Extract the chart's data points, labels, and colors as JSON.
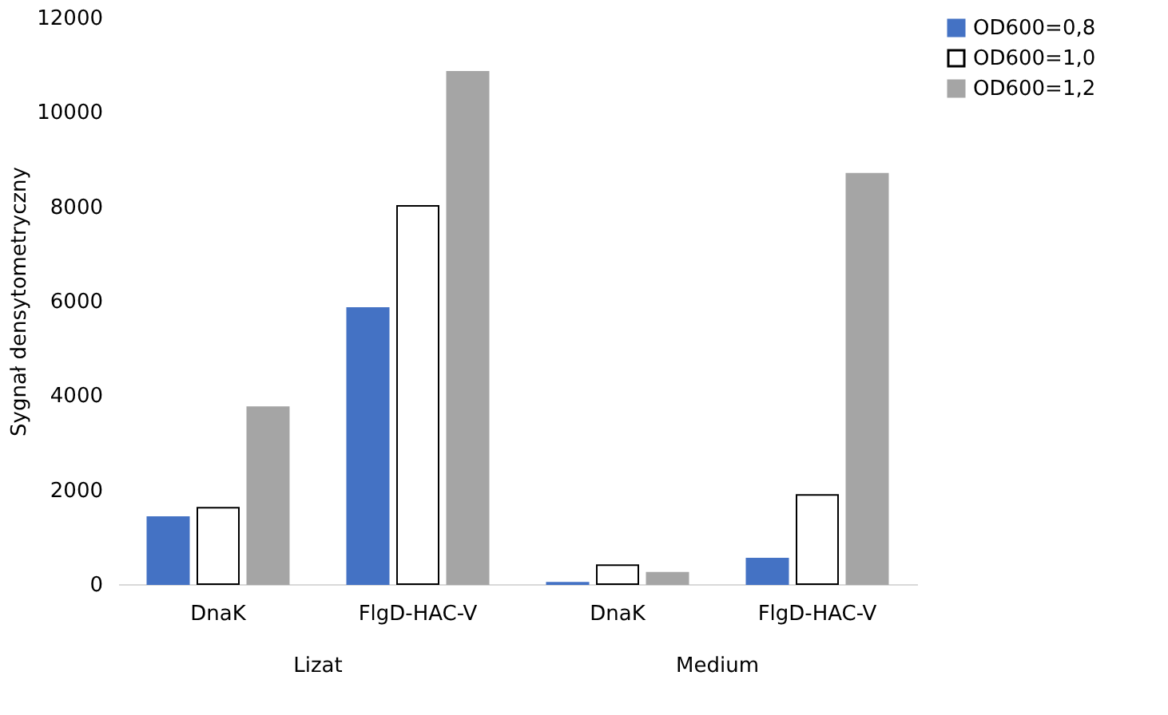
{
  "chart_data": {
    "type": "bar",
    "ylabel": "Sygnał densytometryczny",
    "categories": [
      "DnaK",
      "FlgD-HAC-V",
      "DnaK",
      "FlgD-HAC-V"
    ],
    "series": [
      {
        "name": "OD600=0,8",
        "color": "#4472c4",
        "values": [
          1420,
          5850,
          30,
          540
        ]
      },
      {
        "name": "OD600=1,0",
        "color": "#ffffff",
        "values": [
          1620,
          8010,
          400,
          1890
        ]
      },
      {
        "name": "OD600=1,2",
        "color": "#a5a5a5",
        "values": [
          3750,
          10850,
          240,
          8690
        ]
      }
    ],
    "ylim": [
      0,
      12000
    ],
    "yticks": [
      0,
      2000,
      4000,
      6000,
      8000,
      10000,
      12000
    ],
    "grid": false,
    "legend": "right",
    "annotations": [
      "Lizat",
      "Medium"
    ]
  }
}
